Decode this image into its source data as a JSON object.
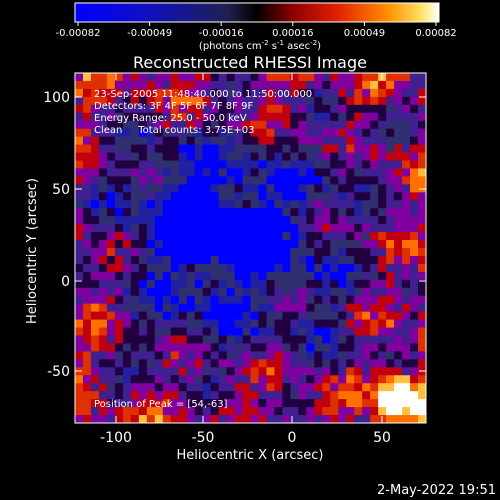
{
  "colorbar": {
    "ticks": [
      "-0.00082",
      "-0.00049",
      "-0.00016",
      "0.00016",
      "0.00049",
      "0.00082"
    ],
    "units_prefix": "(photons cm",
    "units_exp1": "-2",
    "units_mid": " s",
    "units_exp2": "-1",
    "units_after": " asec",
    "units_exp3": "-2",
    "units_suffix": ")"
  },
  "plot": {
    "title": "Reconstructed RHESSI Image",
    "xlabel": "Heliocentric X (arcsec)",
    "ylabel": "Heliocentric Y (arcsec)",
    "x_ticks": [
      "-100",
      "-50",
      "0",
      "50"
    ],
    "y_ticks": [
      "100",
      "50",
      "0",
      "-50"
    ],
    "info_lines": [
      "23-Sep-2005 11:48:40.000 to 11:50:00.000",
      "Detectors: 3F 4F 5F 6F 7F 8F 9F",
      "Energy Range: 25.0 - 50.0 keV",
      "Clean     Total counts: 3.75E+03"
    ],
    "peak_text": "Position of Peak = [54,-63]",
    "colormap": [
      "#0000ff",
      "#2020a0",
      "#303070",
      "#200040",
      "#402090",
      "#8000a0",
      "#c00010",
      "#e03000",
      "#ff7000",
      "#ffc040",
      "#ffffff"
    ]
  },
  "footer": {
    "date": "2-May-2022 19:51"
  }
}
